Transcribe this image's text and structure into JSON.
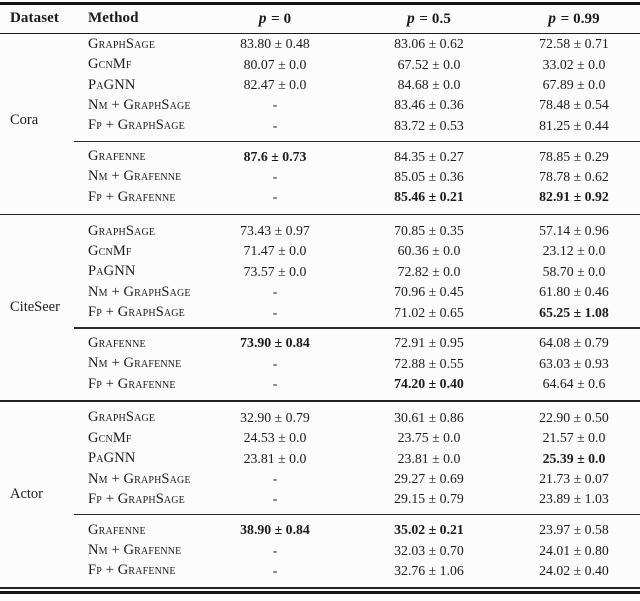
{
  "table": {
    "columns": {
      "dataset": "Dataset",
      "method": "Method",
      "p_columns": [
        {
          "symbol": "p",
          "rest": "= 0"
        },
        {
          "symbol": "p",
          "rest": "= 0.5"
        },
        {
          "symbol": "p",
          "rest": "= 0.99"
        }
      ]
    },
    "groups": [
      {
        "dataset": "Cora",
        "sections": [
          {
            "rows": [
              {
                "method": "GraphSage",
                "cells": [
                  {
                    "text": "83.80 ± 0.48"
                  },
                  {
                    "text": "83.06 ± 0.62"
                  },
                  {
                    "text": "72.58 ± 0.71"
                  }
                ]
              },
              {
                "method": "GcnMf",
                "cells": [
                  {
                    "text": "80.07 ± 0.0"
                  },
                  {
                    "text": "67.52 ± 0.0"
                  },
                  {
                    "text": "33.02 ± 0.0"
                  }
                ]
              },
              {
                "method": "PaGNN",
                "cells": [
                  {
                    "text": "82.47 ± 0.0"
                  },
                  {
                    "text": "84.68 ± 0.0"
                  },
                  {
                    "text": "67.89 ± 0.0"
                  }
                ]
              },
              {
                "method": "Nm + GraphSage",
                "cells": [
                  {
                    "text": "-"
                  },
                  {
                    "text": "83.46 ± 0.36"
                  },
                  {
                    "text": "78.48 ± 0.54"
                  }
                ]
              },
              {
                "method": "Fp + GraphSage",
                "cells": [
                  {
                    "text": "-"
                  },
                  {
                    "text": "83.72 ± 0.53"
                  },
                  {
                    "text": "81.25 ± 0.44"
                  }
                ]
              }
            ]
          },
          {
            "rows": [
              {
                "method": "Grafenne",
                "cells": [
                  {
                    "text": "87.6 ± 0.73",
                    "bold": true
                  },
                  {
                    "text": "84.35 ± 0.27"
                  },
                  {
                    "text": "78.85 ± 0.29"
                  }
                ]
              },
              {
                "method": "Nm + Grafenne",
                "cells": [
                  {
                    "text": "-"
                  },
                  {
                    "text": "85.05 ± 0.36"
                  },
                  {
                    "text": "78.78 ± 0.62"
                  }
                ]
              },
              {
                "method": "Fp + Grafenne",
                "cells": [
                  {
                    "text": "-"
                  },
                  {
                    "text": "85.46 ± 0.21",
                    "bold": true
                  },
                  {
                    "text": "82.91 ± 0.92",
                    "bold": true
                  }
                ]
              }
            ]
          }
        ]
      },
      {
        "dataset": "CiteSeer",
        "sections": [
          {
            "rows": [
              {
                "method": "GraphSage",
                "cells": [
                  {
                    "text": "73.43 ± 0.97"
                  },
                  {
                    "text": "70.85 ± 0.35"
                  },
                  {
                    "text": "57.14 ± 0.96"
                  }
                ]
              },
              {
                "method": "GcnMf",
                "cells": [
                  {
                    "text": "71.47 ± 0.0"
                  },
                  {
                    "text": "60.36 ± 0.0"
                  },
                  {
                    "text": "23.12 ± 0.0"
                  }
                ]
              },
              {
                "method": "PaGNN",
                "cells": [
                  {
                    "text": "73.57 ± 0.0"
                  },
                  {
                    "text": "72.82 ± 0.0"
                  },
                  {
                    "text": "58.70 ± 0.0"
                  }
                ]
              },
              {
                "method": "Nm + GraphSage",
                "cells": [
                  {
                    "text": "-"
                  },
                  {
                    "text": "70.96 ± 0.45"
                  },
                  {
                    "text": "61.80 ± 0.46"
                  }
                ]
              },
              {
                "method": "Fp + GraphSage",
                "cells": [
                  {
                    "text": "-"
                  },
                  {
                    "text": "71.02 ± 0.65"
                  },
                  {
                    "text": "65.25 ± 1.08",
                    "bold": true
                  }
                ]
              }
            ]
          },
          {
            "rows": [
              {
                "method": "Grafenne",
                "cells": [
                  {
                    "text": "73.90 ± 0.84",
                    "bold": true
                  },
                  {
                    "text": "72.91 ± 0.95"
                  },
                  {
                    "text": "64.08 ± 0.79"
                  }
                ]
              },
              {
                "method": "Nm + Grafenne",
                "cells": [
                  {
                    "text": "-"
                  },
                  {
                    "text": "72.88 ± 0.55"
                  },
                  {
                    "text": "63.03 ± 0.93"
                  }
                ]
              },
              {
                "method": "Fp + Grafenne",
                "cells": [
                  {
                    "text": "-"
                  },
                  {
                    "text": "74.20 ± 0.40",
                    "bold": true
                  },
                  {
                    "text": "64.64 ± 0.6"
                  }
                ]
              }
            ]
          }
        ]
      },
      {
        "dataset": "Actor",
        "sections": [
          {
            "rows": [
              {
                "method": "GraphSage",
                "cells": [
                  {
                    "text": "32.90 ± 0.79"
                  },
                  {
                    "text": "30.61 ± 0.86"
                  },
                  {
                    "text": "22.90 ± 0.50"
                  }
                ]
              },
              {
                "method": "GcnMf",
                "cells": [
                  {
                    "text": "24.53 ± 0.0"
                  },
                  {
                    "text": "23.75 ± 0.0"
                  },
                  {
                    "text": "21.57 ± 0.0"
                  }
                ]
              },
              {
                "method": "PaGNN",
                "cells": [
                  {
                    "text": "23.81 ± 0.0"
                  },
                  {
                    "text": "23.81 ± 0.0"
                  },
                  {
                    "text": "25.39 ± 0.0",
                    "bold": true
                  }
                ]
              },
              {
                "method": "Nm + GraphSage",
                "cells": [
                  {
                    "text": "-"
                  },
                  {
                    "text": "29.27 ± 0.69"
                  },
                  {
                    "text": "21.73 ± 0.07"
                  }
                ]
              },
              {
                "method": "Fp + GraphSage",
                "cells": [
                  {
                    "text": "-"
                  },
                  {
                    "text": "29.15 ± 0.79"
                  },
                  {
                    "text": "23.89 ± 1.03"
                  }
                ]
              }
            ]
          },
          {
            "rows": [
              {
                "method": "Grafenne",
                "cells": [
                  {
                    "text": "38.90 ± 0.84",
                    "bold": true
                  },
                  {
                    "text": "35.02 ± 0.21",
                    "bold": true
                  },
                  {
                    "text": "23.97 ± 0.58"
                  }
                ]
              },
              {
                "method": "Nm + Grafenne",
                "cells": [
                  {
                    "text": "-"
                  },
                  {
                    "text": "32.03 ± 0.70"
                  },
                  {
                    "text": "24.01 ± 0.80"
                  }
                ]
              },
              {
                "method": "Fp + Grafenne",
                "cells": [
                  {
                    "text": "-"
                  },
                  {
                    "text": "32.76 ± 1.06"
                  },
                  {
                    "text": "24.02 ± 0.40"
                  }
                ]
              }
            ]
          }
        ]
      }
    ]
  }
}
